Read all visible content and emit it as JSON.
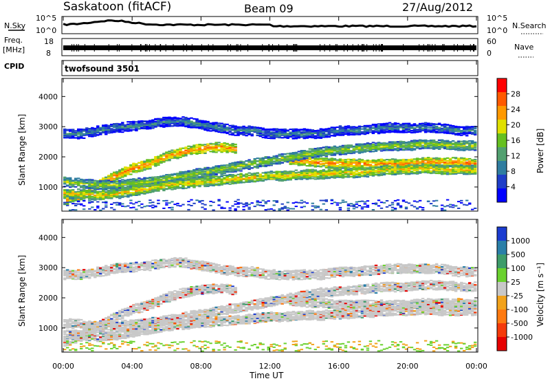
{
  "header": {
    "station": "Saskatoon (fitACF)",
    "beam": "Beam 09",
    "date": "27/Aug/2012"
  },
  "colors": {
    "power": [
      "#0000ff",
      "#1f3ec8",
      "#2f7da0",
      "#52a070",
      "#66c020",
      "#e0e000",
      "#ff9900",
      "#ff5a00",
      "#ff0000"
    ],
    "velocity": [
      "#1b3cd0",
      "#2a7fa8",
      "#3d9c6a",
      "#6ad12e",
      "#c8c8c8",
      "#f2a21a",
      "#ff7a10",
      "#f53a0a",
      "#e60000"
    ]
  },
  "chart_data": [
    {
      "name": "summary",
      "type": "line",
      "rows": [
        {
          "left_label": "N.Sky",
          "left_ticks": [
            "10^5",
            "10^0"
          ],
          "right_label": "N.Search",
          "right_ticks": [
            "10^5",
            "10^0"
          ]
        },
        {
          "left_label": "Freq.",
          "left_unit": "[MHz]",
          "left_ticks": [
            "18",
            "8"
          ],
          "right_label": "Nave",
          "right_ticks": [
            "60",
            "0"
          ]
        },
        {
          "left_label": "CPID",
          "text": "twofsound 3501"
        }
      ]
    },
    {
      "name": "power",
      "type": "heatmap",
      "ylabel": "Slant Range [km]",
      "yticks": [
        1000,
        2000,
        3000,
        4000
      ],
      "ylim": [
        200,
        4600
      ],
      "colorbar_label": "Power [dB]",
      "colorbar_ticks": [
        4,
        8,
        12,
        16,
        20,
        24,
        28
      ],
      "bands": [
        {
          "center": [
            600,
            750,
            1100,
            1400,
            1650,
            1800,
            2050,
            2200,
            2300,
            2350,
            2300,
            2100,
            2000,
            1950,
            1900,
            1850,
            1800,
            1800,
            1800,
            1800,
            1800,
            1850,
            1850,
            1850,
            1800
          ],
          "level": 5
        },
        {
          "center": [
            1200,
            1150,
            1100,
            1100,
            1150,
            1200,
            1300,
            1400,
            1500,
            1600,
            1700,
            1800,
            1900,
            2000,
            2100,
            2200,
            2250,
            2300,
            2350,
            2400,
            2400,
            2450,
            2450,
            2400,
            2400
          ],
          "level": 3
        },
        {
          "center": [
            800,
            800,
            750,
            800,
            900,
            1000,
            1100,
            1150,
            1200,
            1250,
            1300,
            1350,
            1400,
            1400,
            1450,
            1450,
            1500,
            1500,
            1550,
            1600,
            1600,
            1650,
            1600,
            1600,
            1600
          ],
          "level": 4
        },
        {
          "center": [
            2800,
            2800,
            2900,
            3000,
            3050,
            3100,
            3200,
            3200,
            3100,
            3000,
            2900,
            2900,
            2800,
            2800,
            2800,
            2800,
            2900,
            2900,
            2950,
            3000,
            3000,
            3000,
            3000,
            2900,
            2900
          ],
          "level": 1
        }
      ]
    },
    {
      "name": "velocity",
      "type": "heatmap",
      "ylabel": "Slant Range [km]",
      "yticks": [
        1000,
        2000,
        3000,
        4000
      ],
      "ylim": [
        200,
        4600
      ],
      "xlabel": "Time UT",
      "xticks": [
        "00:00",
        "04:00",
        "08:00",
        "12:00",
        "16:00",
        "20:00",
        "00:00"
      ],
      "colorbar_label": "Velocity [m s⁻¹]",
      "colorbar_ticks": [
        "1000",
        "500",
        "100",
        "25",
        "-25",
        "-100",
        "-500",
        "-1000"
      ]
    }
  ]
}
